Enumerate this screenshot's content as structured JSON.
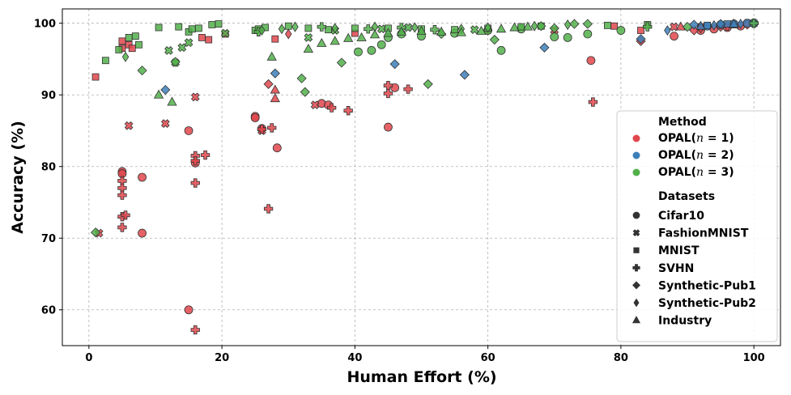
{
  "chart_data": {
    "type": "scatter",
    "title": "",
    "xlabel": "Human Effort (%)",
    "ylabel": "Accuracy (%)",
    "xlim": [
      -4,
      104
    ],
    "ylim": [
      55,
      102
    ],
    "xticks": [
      0,
      20,
      40,
      60,
      80,
      100
    ],
    "yticks": [
      60,
      70,
      80,
      90,
      100
    ],
    "grid": true,
    "legend_position": "right",
    "legend": {
      "method_title": "Method",
      "datasets_title": "Datasets",
      "methods": [
        {
          "key": "n1",
          "label_prefix": "OPAL(",
          "label_var": "n",
          "label_suffix": " = 1)",
          "color": "#e0474c"
        },
        {
          "key": "n2",
          "label_prefix": "OPAL(",
          "label_var": "n",
          "label_suffix": " = 2)",
          "color": "#3d7fb8"
        },
        {
          "key": "n3",
          "label_prefix": "OPAL(",
          "label_var": "n",
          "label_suffix": " = 3)",
          "color": "#52b04b"
        }
      ],
      "datasets": [
        {
          "name": "Cifar10",
          "marker": "circle"
        },
        {
          "name": "FashionMNIST",
          "marker": "x"
        },
        {
          "name": "MNIST",
          "marker": "square"
        },
        {
          "name": "SVHN",
          "marker": "plus"
        },
        {
          "name": "Synthetic-Pub1",
          "marker": "diamond"
        },
        {
          "name": "Synthetic-Pub2",
          "marker": "thin-diamond"
        },
        {
          "name": "Industry",
          "marker": "triangle"
        }
      ]
    },
    "series": [
      {
        "method": "n1",
        "dataset": "Cifar10",
        "points": [
          [
            5,
            79.3
          ],
          [
            5,
            79
          ],
          [
            8,
            78.5
          ],
          [
            8,
            70.7
          ],
          [
            15,
            85
          ],
          [
            15,
            60
          ],
          [
            16,
            80.5
          ],
          [
            25,
            87
          ],
          [
            25,
            86.8
          ],
          [
            26,
            85.3
          ],
          [
            28.3,
            82.6
          ],
          [
            35,
            88.8
          ],
          [
            36,
            88.6
          ],
          [
            45,
            85.5
          ],
          [
            46,
            91
          ],
          [
            75.5,
            94.8
          ],
          [
            88,
            98.2
          ],
          [
            92,
            99
          ],
          [
            94,
            99.2
          ],
          [
            96,
            99.4
          ],
          [
            98,
            99.6
          ],
          [
            100,
            100
          ]
        ]
      },
      {
        "method": "n1",
        "dataset": "FashionMNIST",
        "points": [
          [
            1.5,
            70.7
          ],
          [
            6,
            85.7
          ],
          [
            11.5,
            86
          ],
          [
            16,
            89.7
          ],
          [
            26,
            85
          ],
          [
            34,
            88.6
          ],
          [
            70,
            99
          ],
          [
            88,
            99.5
          ],
          [
            95,
            99.7
          ],
          [
            99,
            100
          ]
        ]
      },
      {
        "method": "n1",
        "dataset": "MNIST",
        "points": [
          [
            1,
            92.5
          ],
          [
            5,
            97.5
          ],
          [
            5,
            96.5
          ],
          [
            6,
            97
          ],
          [
            6.5,
            96.5
          ],
          [
            17,
            98
          ],
          [
            18,
            97.7
          ],
          [
            20.5,
            98.5
          ],
          [
            28,
            97.8
          ],
          [
            40,
            98.6
          ],
          [
            79,
            99.6
          ],
          [
            83,
            99
          ],
          [
            92,
            99.5
          ],
          [
            97,
            99.8
          ],
          [
            100,
            100
          ]
        ]
      },
      {
        "method": "n1",
        "dataset": "SVHN",
        "points": [
          [
            5,
            78
          ],
          [
            5,
            77
          ],
          [
            5,
            76
          ],
          [
            5,
            73
          ],
          [
            5.5,
            73.2
          ],
          [
            5,
            71.5
          ],
          [
            16,
            81.5
          ],
          [
            16,
            80.8
          ],
          [
            17.5,
            81.6
          ],
          [
            16,
            77.7
          ],
          [
            16,
            57.2
          ],
          [
            27,
            74.1
          ],
          [
            26,
            85.2
          ],
          [
            27.5,
            85.4
          ],
          [
            36.5,
            88.2
          ],
          [
            39,
            87.8
          ],
          [
            45,
            91.3
          ],
          [
            45,
            90.2
          ],
          [
            48,
            90.8
          ],
          [
            75.8,
            89
          ],
          [
            96,
            99.6
          ],
          [
            100,
            100
          ]
        ]
      },
      {
        "method": "n1",
        "dataset": "Synthetic-Pub1",
        "points": [
          [
            27,
            91.5
          ],
          [
            83,
            97.5
          ],
          [
            91,
            99
          ],
          [
            95,
            99.5
          ],
          [
            99,
            99.8
          ]
        ]
      },
      {
        "method": "n1",
        "dataset": "Synthetic-Pub2",
        "points": [
          [
            30,
            98.5
          ],
          [
            60,
            99
          ],
          [
            92,
            99.3
          ],
          [
            100,
            100
          ]
        ]
      },
      {
        "method": "n1",
        "dataset": "Industry",
        "points": [
          [
            28,
            90.7
          ],
          [
            28,
            89.5
          ],
          [
            89,
            99.5
          ],
          [
            97,
            99.8
          ]
        ]
      },
      {
        "method": "n2",
        "dataset": "Cifar10",
        "points": [
          [
            93,
            99.6
          ],
          [
            95,
            99.8
          ],
          [
            97,
            99.9
          ],
          [
            99,
            100
          ]
        ]
      },
      {
        "method": "n2",
        "dataset": "MNIST",
        "points": [
          [
            93,
            99.7
          ],
          [
            96,
            99.9
          ],
          [
            100,
            100
          ]
        ]
      },
      {
        "method": "n2",
        "dataset": "Synthetic-Pub1",
        "points": [
          [
            11.5,
            90.7
          ],
          [
            28,
            93
          ],
          [
            46,
            94.3
          ],
          [
            56.5,
            92.8
          ],
          [
            68.5,
            96.6
          ],
          [
            83,
            97.8
          ],
          [
            91,
            99.8
          ],
          [
            95,
            99.9
          ]
        ]
      },
      {
        "method": "n2",
        "dataset": "Synthetic-Pub2",
        "points": [
          [
            87,
            99
          ],
          [
            94,
            99.7
          ],
          [
            98,
            99.9
          ]
        ]
      },
      {
        "method": "n2",
        "dataset": "Industry",
        "points": [
          [
            92,
            99.6
          ],
          [
            97,
            99.9
          ]
        ]
      },
      {
        "method": "n3",
        "dataset": "Cifar10",
        "points": [
          [
            40.5,
            96
          ],
          [
            42.5,
            96.2
          ],
          [
            44,
            97
          ],
          [
            45,
            98
          ],
          [
            47,
            98.5
          ],
          [
            50,
            98.2
          ],
          [
            55,
            98.6
          ],
          [
            60,
            99
          ],
          [
            62,
            96.2
          ],
          [
            65,
            99.2
          ],
          [
            70,
            98.1
          ],
          [
            72,
            98
          ],
          [
            75,
            98.5
          ],
          [
            80,
            99
          ]
        ]
      },
      {
        "method": "n3",
        "dataset": "FashionMNIST",
        "points": [
          [
            12,
            96.2
          ],
          [
            13,
            94.5
          ],
          [
            14,
            96.6
          ],
          [
            15,
            97.3
          ],
          [
            20.5,
            98.6
          ],
          [
            33,
            98
          ],
          [
            37,
            99
          ],
          [
            44,
            99.2
          ],
          [
            48,
            99.4
          ],
          [
            58,
            99.1
          ]
        ]
      },
      {
        "method": "n3",
        "dataset": "MNIST",
        "points": [
          [
            2.5,
            94.8
          ],
          [
            4.5,
            96.3
          ],
          [
            6,
            98
          ],
          [
            7,
            98.2
          ],
          [
            7.5,
            97
          ],
          [
            10.5,
            99.4
          ],
          [
            13.5,
            99.5
          ],
          [
            15,
            98.8
          ],
          [
            15.5,
            99.2
          ],
          [
            16.5,
            99.3
          ],
          [
            18.5,
            99.8
          ],
          [
            19.5,
            99.9
          ],
          [
            25,
            99
          ],
          [
            25.5,
            99.2
          ],
          [
            26.5,
            99.4
          ],
          [
            30,
            99.6
          ],
          [
            33,
            99.3
          ],
          [
            36,
            99.1
          ],
          [
            40,
            99.3
          ],
          [
            45,
            99.3
          ],
          [
            50,
            99.2
          ],
          [
            55,
            99.1
          ],
          [
            60,
            99.3
          ],
          [
            65,
            99.5
          ],
          [
            68,
            99.6
          ],
          [
            78,
            99.7
          ],
          [
            84,
            99.8
          ]
        ]
      },
      {
        "method": "n3",
        "dataset": "SVHN",
        "points": [
          [
            25.5,
            98.8
          ],
          [
            35,
            99.5
          ],
          [
            42,
            99.2
          ],
          [
            47,
            99.4
          ],
          [
            52,
            99.1
          ],
          [
            84,
            99.5
          ],
          [
            100,
            100
          ]
        ]
      },
      {
        "method": "n3",
        "dataset": "Synthetic-Pub1",
        "points": [
          [
            1,
            70.8
          ],
          [
            8,
            93.4
          ],
          [
            13,
            94.6
          ],
          [
            32,
            92.3
          ],
          [
            32.5,
            90.4
          ],
          [
            38,
            94.5
          ],
          [
            51,
            91.5
          ],
          [
            53,
            98.5
          ],
          [
            61,
            97.7
          ],
          [
            68,
            99.6
          ],
          [
            70,
            99.3
          ],
          [
            73,
            99.9
          ],
          [
            75,
            99.9
          ],
          [
            90,
            99.5
          ]
        ]
      },
      {
        "method": "n3",
        "dataset": "Synthetic-Pub2",
        "points": [
          [
            5.5,
            95.3
          ],
          [
            26,
            99
          ],
          [
            29,
            99.2
          ],
          [
            31,
            99.5
          ],
          [
            37,
            99.3
          ],
          [
            43,
            99.5
          ],
          [
            49,
            99.4
          ],
          [
            56,
            99.2
          ],
          [
            60,
            99.4
          ],
          [
            67,
            99.6
          ],
          [
            72,
            99.8
          ]
        ]
      },
      {
        "method": "n3",
        "dataset": "Industry",
        "points": [
          [
            10.5,
            90
          ],
          [
            12.5,
            89
          ],
          [
            27.5,
            95.3
          ],
          [
            33,
            96.4
          ],
          [
            35,
            97.2
          ],
          [
            37,
            97.5
          ],
          [
            39,
            97.9
          ],
          [
            41,
            98
          ],
          [
            43,
            98.4
          ],
          [
            45,
            98.6
          ],
          [
            47,
            98.8
          ],
          [
            50,
            98.9
          ],
          [
            53,
            98.8
          ],
          [
            56,
            98.7
          ],
          [
            59,
            98.9
          ],
          [
            62,
            99.2
          ],
          [
            64,
            99.4
          ],
          [
            66,
            99.5
          ]
        ]
      }
    ]
  }
}
